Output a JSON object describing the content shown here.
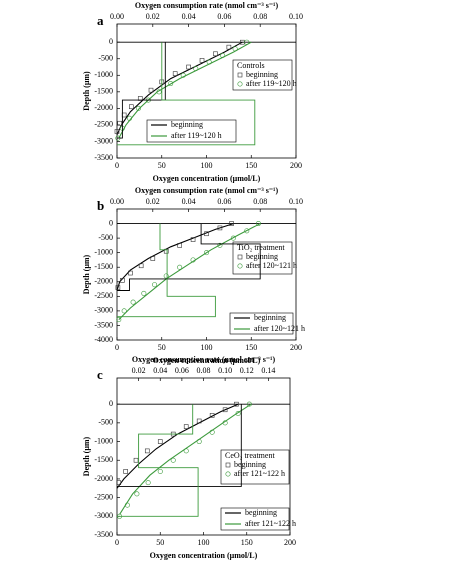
{
  "chart_data": [
    {
      "type": "line",
      "panel_label": "a",
      "x_label": "Oxygen concentration (μmol/L)",
      "x2_label": "Oxygen consumption rate (nmol cm⁻³ s⁻¹)",
      "y_label": "Depth (μm)",
      "xlim": [
        0,
        200
      ],
      "xticks": [
        0,
        50,
        100,
        150,
        200
      ],
      "x2lim": [
        0,
        0.1
      ],
      "x2ticks": [
        {
          "value": 0,
          "label": "0.00"
        },
        0.02,
        0.04,
        0.06,
        0.08,
        {
          "value": 0.1,
          "label": "0.10"
        }
      ],
      "ylim": [
        -3500,
        550
      ],
      "yticks": [
        0,
        -500,
        -1000,
        -1500,
        -2000,
        -2500,
        -3000,
        -3500
      ],
      "legend_title": "Controls",
      "series": [
        {
          "name": "beginning",
          "color": "#000000",
          "marker": "line",
          "x": [
            140,
            120,
            90,
            60,
            35,
            15,
            5,
            0
          ],
          "values": [
            0,
            -300,
            -700,
            -1100,
            -1600,
            -2100,
            -2500,
            -2800
          ]
        },
        {
          "name": "after 119~120 h",
          "color": "#3c9a3c",
          "marker": "line",
          "x": [
            150,
            130,
            100,
            70,
            45,
            25,
            10,
            2
          ],
          "values": [
            0,
            -300,
            -700,
            -1100,
            -1500,
            -2000,
            -2500,
            -2900
          ]
        },
        {
          "name": "beginning",
          "color": "#333333",
          "marker": "square",
          "x": [
            140,
            125,
            110,
            95,
            80,
            65,
            50,
            38,
            26,
            16,
            8,
            3,
            0
          ],
          "values": [
            0,
            -150,
            -350,
            -550,
            -750,
            -950,
            -1200,
            -1450,
            -1700,
            -1950,
            -2200,
            -2450,
            -2700
          ]
        },
        {
          "name": "after 119~120 h",
          "color": "#3c9a3c",
          "marker": "circle",
          "x": [
            145,
            132,
            118,
            103,
            88,
            74,
            60,
            47,
            35,
            24,
            14,
            6,
            1
          ],
          "values": [
            0,
            -200,
            -400,
            -600,
            -800,
            -1000,
            -1250,
            -1500,
            -1750,
            -2000,
            -2300,
            -2600,
            -2900
          ]
        },
        {
          "color": "#000000",
          "marker": "step",
          "axis": "x2",
          "x": [
            0.027,
            0.027,
            0.003,
            0.003,
            0
          ],
          "values": [
            0,
            -1750,
            -1750,
            -2900,
            -2900
          ]
        },
        {
          "color": "#3c9a3c",
          "marker": "step",
          "axis": "x2",
          "x": [
            0.025,
            0.025,
            0.077,
            0.077,
            0
          ],
          "values": [
            0,
            -1750,
            -1750,
            -3100,
            -3100
          ]
        }
      ]
    },
    {
      "type": "line",
      "panel_label": "b",
      "x_label": "Oxygen concentration (μmol/L)",
      "x2_label": "Oxygen consumption rate (nmol cm⁻³ s⁻¹)",
      "y_label": "Depth (μm)",
      "xlim": [
        0,
        200
      ],
      "xticks": [
        0,
        50,
        100,
        150,
        200
      ],
      "x2lim": [
        0,
        0.1
      ],
      "x2ticks": [
        {
          "value": 0,
          "label": "0.00"
        },
        0.02,
        0.04,
        0.06,
        0.08,
        {
          "value": 0.1,
          "label": "0.10"
        }
      ],
      "ylim": [
        -4000,
        500
      ],
      "yticks": [
        0,
        -500,
        -1000,
        -1500,
        -2000,
        -2500,
        -3000,
        -3500,
        -4000
      ],
      "legend_title": "TiO₂ treatment",
      "series": [
        {
          "name": "beginning",
          "color": "#000000",
          "marker": "line",
          "x": [
            130,
            110,
            85,
            60,
            35,
            15,
            3,
            0
          ],
          "values": [
            0,
            -200,
            -500,
            -800,
            -1200,
            -1600,
            -2000,
            -2300
          ]
        },
        {
          "name": "after 120~121 h",
          "color": "#3c9a3c",
          "marker": "line",
          "x": [
            160,
            135,
            105,
            80,
            55,
            35,
            15,
            2
          ],
          "values": [
            0,
            -400,
            -900,
            -1400,
            -1900,
            -2400,
            -2900,
            -3300
          ]
        },
        {
          "name": "beginning",
          "color": "#333333",
          "marker": "square",
          "x": [
            128,
            115,
            100,
            85,
            70,
            55,
            40,
            27,
            15,
            6,
            1
          ],
          "values": [
            0,
            -150,
            -350,
            -550,
            -750,
            -950,
            -1200,
            -1450,
            -1700,
            -1950,
            -2200
          ]
        },
        {
          "name": "after 120~121 h",
          "color": "#3c9a3c",
          "marker": "circle",
          "x": [
            158,
            145,
            130,
            115,
            100,
            85,
            70,
            55,
            42,
            30,
            18,
            8,
            2
          ],
          "values": [
            0,
            -250,
            -500,
            -750,
            -1000,
            -1250,
            -1500,
            -1800,
            -2100,
            -2400,
            -2700,
            -3000,
            -3300
          ]
        },
        {
          "color": "#000000",
          "marker": "step",
          "axis": "x2",
          "x": [
            0.047,
            0.047,
            0.08,
            0.08,
            0.007,
            0.007,
            0
          ],
          "values": [
            0,
            -700,
            -700,
            -1900,
            -1900,
            -2300,
            -2300
          ]
        },
        {
          "color": "#3c9a3c",
          "marker": "step",
          "axis": "x2",
          "x": [
            0.024,
            0.024,
            0.028,
            0.028,
            0.055,
            0.055,
            0
          ],
          "values": [
            0,
            -900,
            -900,
            -2500,
            -2500,
            -3200,
            -3200
          ]
        }
      ]
    },
    {
      "type": "line",
      "panel_label": "c",
      "x_label": "Oxygen concentration (μmol/L)",
      "x2_label": "Oxygen consumption rate (nmol cm⁻³ s⁻¹)",
      "y_label": "Depth (μm)",
      "xlim": [
        0,
        200
      ],
      "xticks": [
        0,
        50,
        100,
        150,
        200
      ],
      "x2lim": [
        0,
        0.16
      ],
      "x2ticks": [
        0.02,
        0.04,
        0.06,
        0.08,
        {
          "value": 0.1,
          "label": "0.10"
        },
        0.12,
        0.14
      ],
      "ylim": [
        -3500,
        700
      ],
      "yticks": [
        0,
        -500,
        -1000,
        -1500,
        -2000,
        -2500,
        -3000,
        -3500
      ],
      "legend_title": "CeO₂ treatment",
      "series": [
        {
          "name": "beginning",
          "color": "#000000",
          "marker": "line",
          "x": [
            140,
            120,
            95,
            70,
            45,
            25,
            8,
            0
          ],
          "values": [
            0,
            -200,
            -500,
            -800,
            -1200,
            -1600,
            -2000,
            -2250
          ]
        },
        {
          "name": "after 121~122 h",
          "color": "#3c9a3c",
          "marker": "line",
          "x": [
            155,
            135,
            110,
            85,
            60,
            38,
            18,
            3
          ],
          "values": [
            0,
            -300,
            -700,
            -1100,
            -1500,
            -1900,
            -2400,
            -2950
          ]
        },
        {
          "name": "beginning",
          "color": "#333333",
          "marker": "square",
          "x": [
            138,
            125,
            110,
            95,
            80,
            65,
            50,
            35,
            22,
            10,
            2
          ],
          "values": [
            0,
            -150,
            -300,
            -450,
            -600,
            -800,
            -1000,
            -1250,
            -1500,
            -1800,
            -2100
          ]
        },
        {
          "name": "after 121~122 h",
          "color": "#3c9a3c",
          "marker": "circle",
          "x": [
            153,
            140,
            125,
            110,
            95,
            80,
            65,
            50,
            36,
            23,
            12,
            3
          ],
          "values": [
            0,
            -250,
            -500,
            -750,
            -1000,
            -1250,
            -1500,
            -1800,
            -2100,
            -2400,
            -2700,
            -3000
          ]
        },
        {
          "color": "#000000",
          "marker": "step",
          "axis": "x2",
          "x": [
            0.115,
            0.115,
            0
          ],
          "values": [
            0,
            -2200,
            -2200
          ]
        },
        {
          "color": "#3c9a3c",
          "marker": "step",
          "axis": "x2",
          "x": [
            0.07,
            0.07,
            0.02,
            0.02,
            0.075,
            0.075,
            0
          ],
          "values": [
            0,
            -800,
            -800,
            -1700,
            -1700,
            -3000,
            -3000
          ]
        }
      ]
    }
  ]
}
